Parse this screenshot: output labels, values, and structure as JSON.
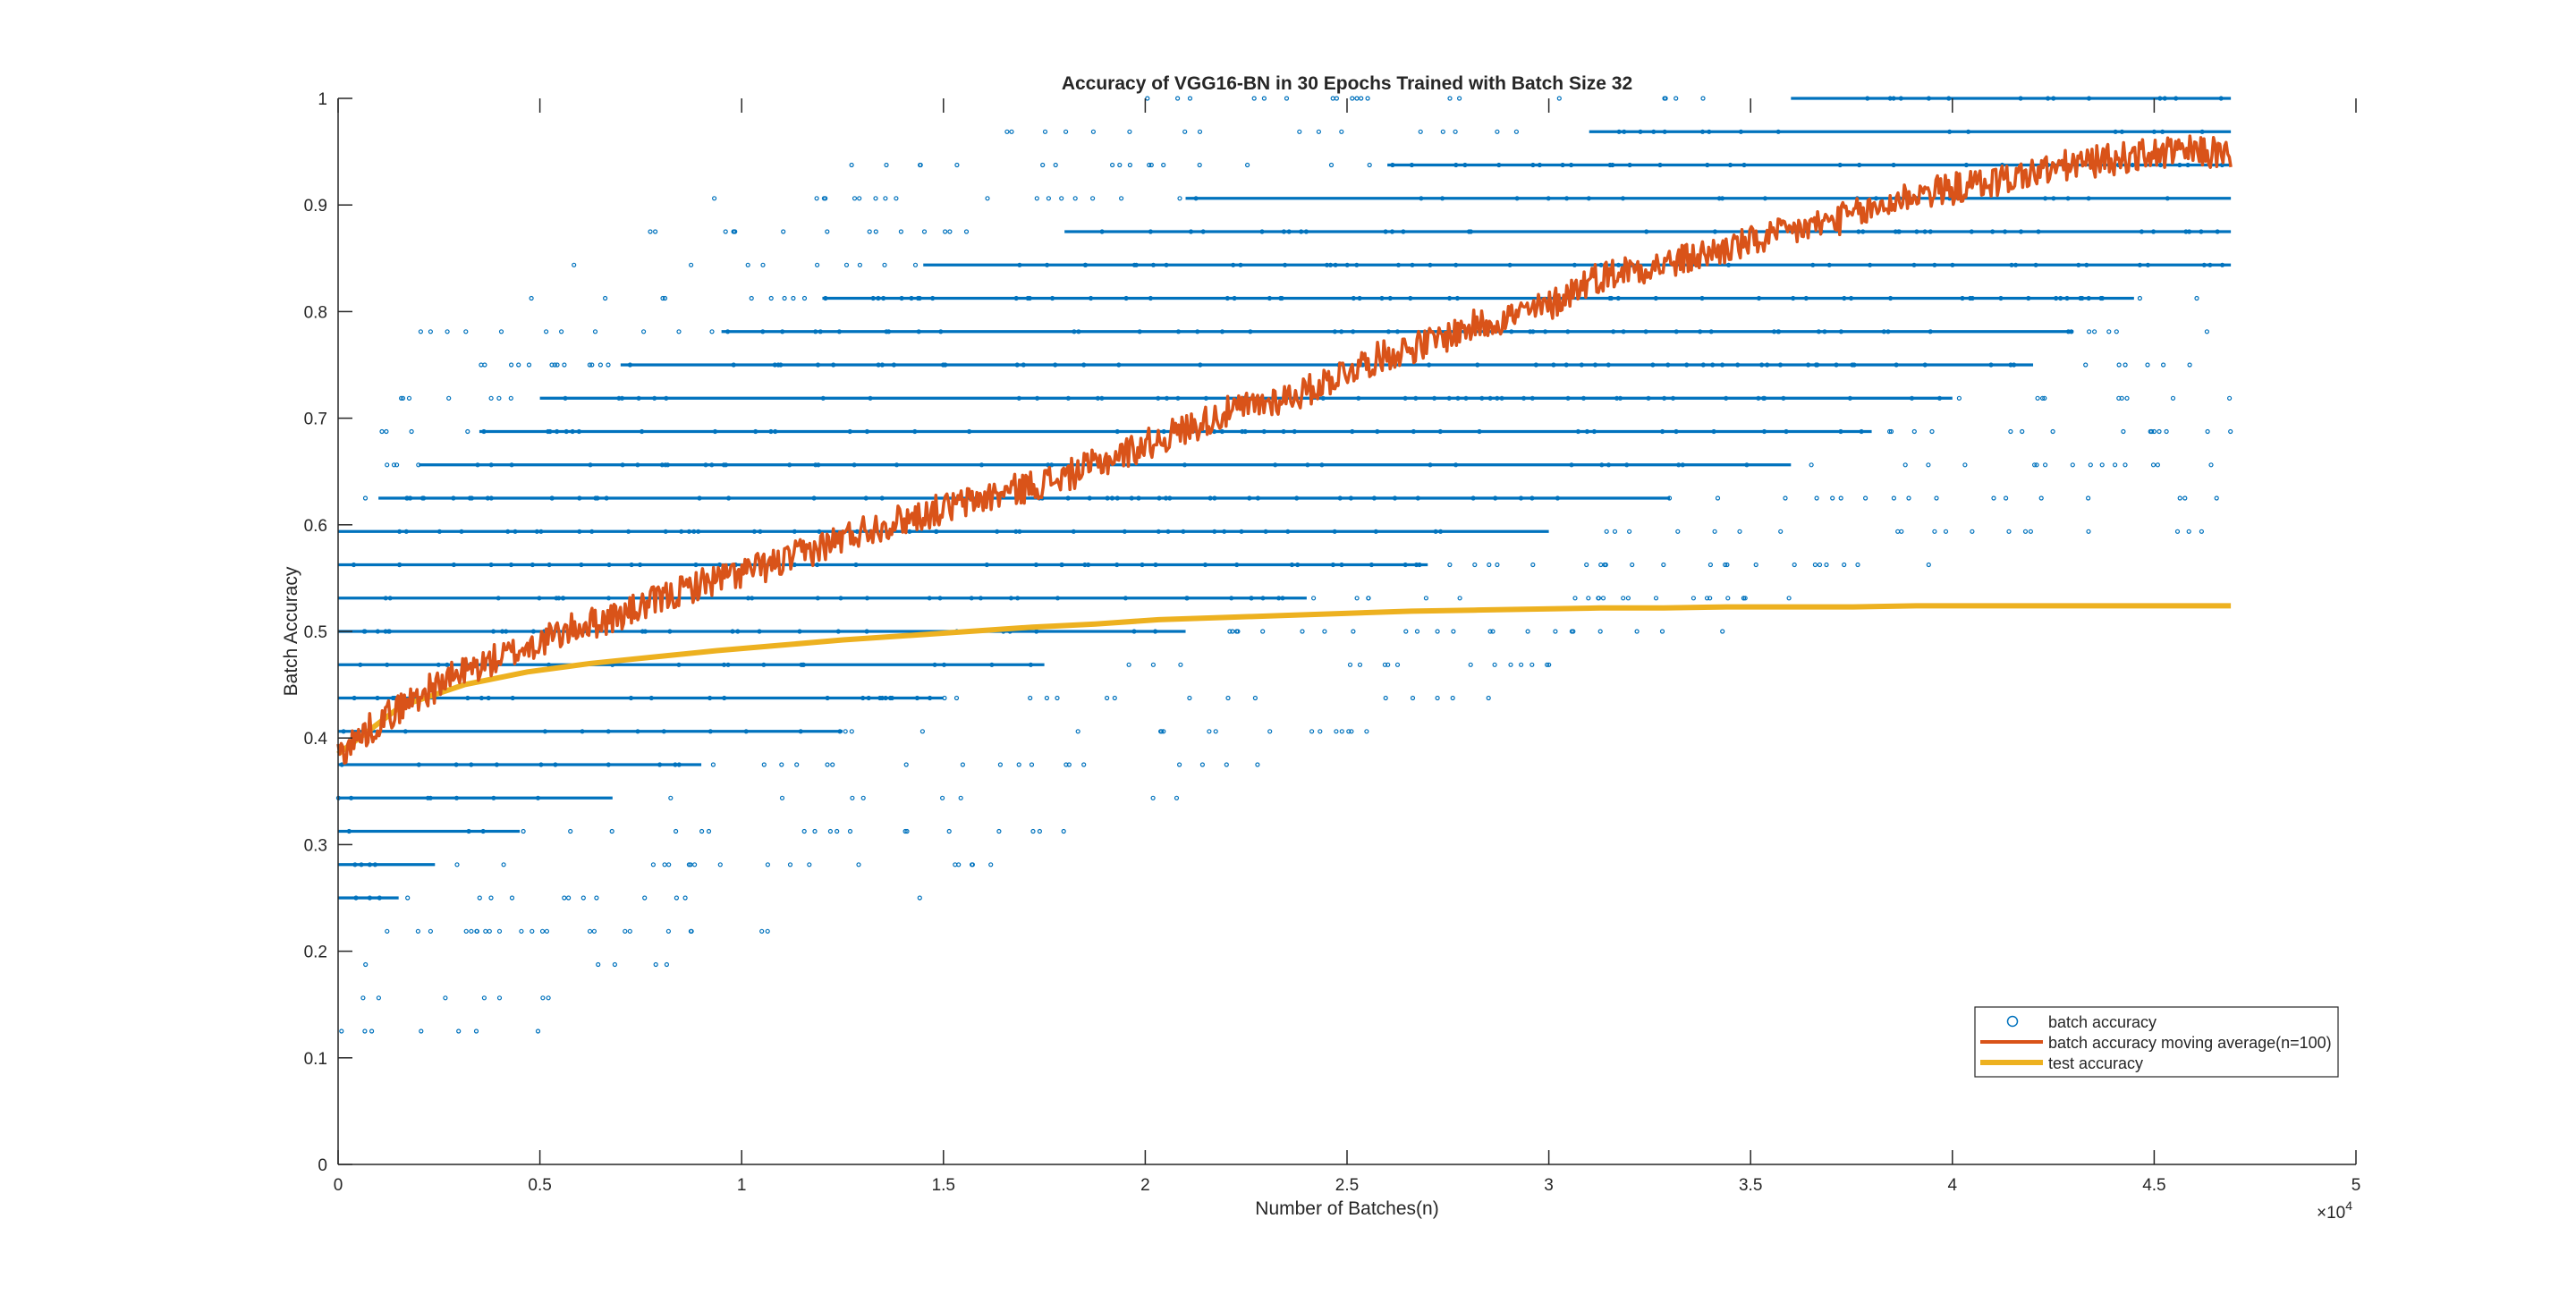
{
  "chart_data": {
    "type": "scatter",
    "title": "Accuracy of VGG16-BN in 30 Epochs Trained with Batch Size 32",
    "xlabel": "Number of Batches(n)",
    "ylabel": "Batch Accuracy",
    "x_exponent_label": "×10",
    "x_exponent_power": "4",
    "xlim": [
      0,
      50000
    ],
    "ylim": [
      0,
      1
    ],
    "x_ticks": [
      0,
      5000,
      10000,
      15000,
      20000,
      25000,
      30000,
      35000,
      40000,
      45000,
      50000
    ],
    "x_tick_labels": [
      "0",
      "0.5",
      "1",
      "1.5",
      "2",
      "2.5",
      "3",
      "3.5",
      "4",
      "4.5",
      "5"
    ],
    "y_ticks": [
      0,
      0.1,
      0.2,
      0.3,
      0.4,
      0.5,
      0.6,
      0.7,
      0.8,
      0.9,
      1
    ],
    "y_tick_labels": [
      "0",
      "0.1",
      "0.2",
      "0.3",
      "0.4",
      "0.5",
      "0.6",
      "0.7",
      "0.8",
      "0.9",
      "1"
    ],
    "grid": false,
    "legend_position": "bottom-right",
    "total_batches": 46900,
    "accuracy_levels_k_of_32": [
      4,
      5,
      6,
      7,
      8,
      9,
      10,
      11,
      12,
      13,
      14,
      15,
      16,
      17,
      18,
      19,
      20,
      21,
      22,
      23,
      24,
      25,
      26,
      27,
      28,
      29,
      30,
      31,
      32
    ],
    "series": [
      {
        "name": "batch accuracy",
        "kind": "scatter",
        "marker": "circle",
        "color": "#0072BD",
        "dense_bands": [
          {
            "y": 0.25,
            "x_range": [
              0,
              1500
            ]
          },
          {
            "y": 0.28125,
            "x_range": [
              0,
              2400
            ]
          },
          {
            "y": 0.3125,
            "x_range": [
              0,
              4500
            ]
          },
          {
            "y": 0.34375,
            "x_range": [
              0,
              6800
            ]
          },
          {
            "y": 0.375,
            "x_range": [
              0,
              9000
            ]
          },
          {
            "y": 0.40625,
            "x_range": [
              0,
              12500
            ]
          },
          {
            "y": 0.4375,
            "x_range": [
              0,
              15000
            ]
          },
          {
            "y": 0.46875,
            "x_range": [
              0,
              17500
            ]
          },
          {
            "y": 0.5,
            "x_range": [
              0,
              21000
            ]
          },
          {
            "y": 0.53125,
            "x_range": [
              0,
              24000
            ]
          },
          {
            "y": 0.5625,
            "x_range": [
              0,
              27000
            ]
          },
          {
            "y": 0.59375,
            "x_range": [
              0,
              30000
            ]
          },
          {
            "y": 0.625,
            "x_range": [
              1000,
              33000
            ]
          },
          {
            "y": 0.65625,
            "x_range": [
              2000,
              36000
            ]
          },
          {
            "y": 0.6875,
            "x_range": [
              3500,
              38000
            ]
          },
          {
            "y": 0.71875,
            "x_range": [
              5000,
              40000
            ]
          },
          {
            "y": 0.75,
            "x_range": [
              7000,
              42000
            ]
          },
          {
            "y": 0.78125,
            "x_range": [
              9500,
              43000
            ]
          },
          {
            "y": 0.8125,
            "x_range": [
              12000,
              44500
            ]
          },
          {
            "y": 0.84375,
            "x_range": [
              14500,
              46900
            ]
          },
          {
            "y": 0.875,
            "x_range": [
              18000,
              46900
            ]
          },
          {
            "y": 0.90625,
            "x_range": [
              21000,
              46900
            ]
          },
          {
            "y": 0.9375,
            "x_range": [
              26000,
              46900
            ]
          },
          {
            "y": 0.96875,
            "x_range": [
              31000,
              46900
            ]
          },
          {
            "y": 1.0,
            "x_range": [
              36000,
              46900
            ]
          }
        ]
      },
      {
        "name": "batch accuracy moving average(n=100)",
        "kind": "line",
        "color": "#D95319",
        "x": [
          0,
          1000,
          2000,
          3000,
          4000,
          5000,
          6000,
          7000,
          8000,
          9000,
          10000,
          11000,
          12000,
          13000,
          14000,
          15000,
          16000,
          17000,
          18000,
          19000,
          20000,
          21000,
          22000,
          23000,
          24000,
          25000,
          26000,
          27000,
          28000,
          29000,
          30000,
          31000,
          32000,
          33000,
          34000,
          35000,
          36000,
          37000,
          38000,
          39000,
          40000,
          41000,
          42000,
          43000,
          44000,
          45000,
          46000,
          46900
        ],
        "y": [
          0.385,
          0.415,
          0.44,
          0.46,
          0.475,
          0.49,
          0.505,
          0.515,
          0.53,
          0.545,
          0.555,
          0.565,
          0.58,
          0.595,
          0.605,
          0.615,
          0.625,
          0.635,
          0.645,
          0.66,
          0.675,
          0.69,
          0.705,
          0.715,
          0.725,
          0.745,
          0.76,
          0.77,
          0.785,
          0.795,
          0.805,
          0.83,
          0.84,
          0.845,
          0.855,
          0.865,
          0.875,
          0.885,
          0.895,
          0.91,
          0.915,
          0.922,
          0.93,
          0.938,
          0.943,
          0.948,
          0.95,
          0.948
        ]
      },
      {
        "name": "test accuracy",
        "kind": "line",
        "color": "#EDB120",
        "x": [
          0,
          1564,
          3128,
          4692,
          6256,
          7820,
          9384,
          10948,
          12512,
          14076,
          15640,
          17204,
          18768,
          20332,
          21896,
          23460,
          25024,
          26588,
          28152,
          29716,
          31280,
          32844,
          34408,
          35972,
          37536,
          39100,
          40664,
          42228,
          43792,
          45356,
          46900
        ],
        "y": [
          0.385,
          0.43,
          0.45,
          0.462,
          0.47,
          0.476,
          0.482,
          0.487,
          0.492,
          0.496,
          0.5,
          0.504,
          0.507,
          0.511,
          0.513,
          0.515,
          0.517,
          0.519,
          0.52,
          0.521,
          0.522,
          0.522,
          0.523,
          0.523,
          0.523,
          0.524,
          0.524,
          0.524,
          0.524,
          0.524,
          0.524
        ]
      }
    ]
  }
}
